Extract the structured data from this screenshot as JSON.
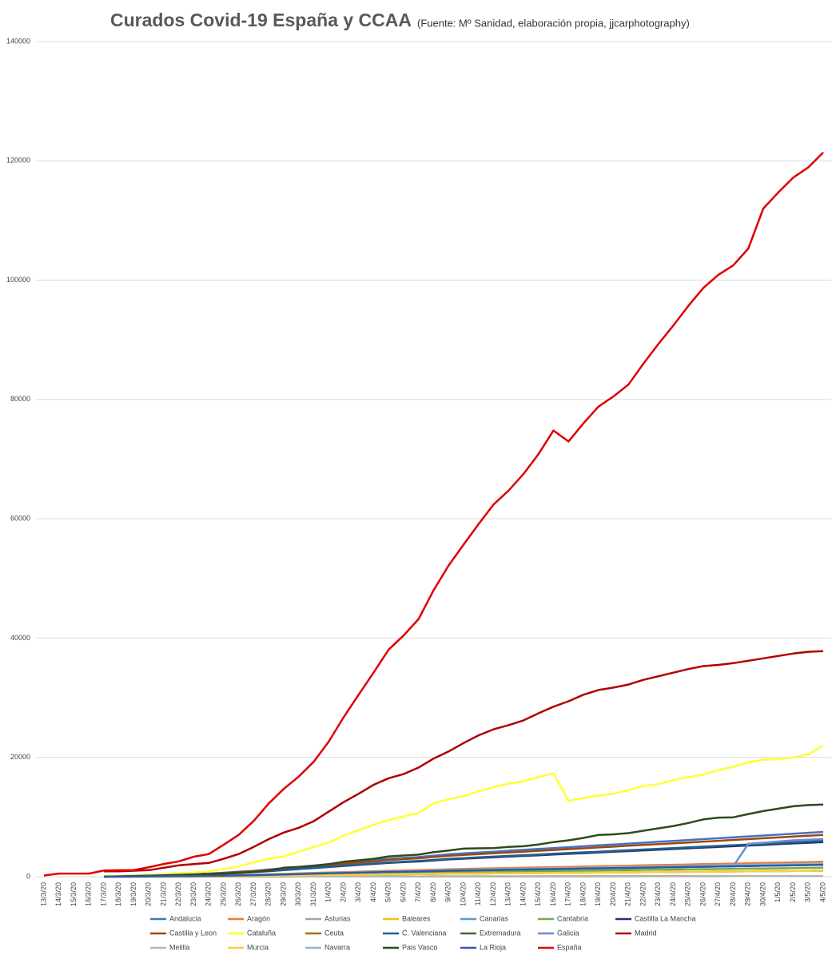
{
  "chart_data": {
    "type": "line",
    "title": "Curados Covid-19 España y CCAA",
    "subtitle": "(Fuente: Mº Sanidad, elaboración propia, jjcarphotography)",
    "categories": [
      "13/3/20",
      "14/3/20",
      "15/3/20",
      "16/3/20",
      "17/3/20",
      "18/3/20",
      "19/3/20",
      "20/3/20",
      "21/3/20",
      "22/3/20",
      "23/3/20",
      "24/3/20",
      "25/3/20",
      "26/3/20",
      "27/3/20",
      "28/3/20",
      "29/3/20",
      "30/3/20",
      "31/3/20",
      "1/4/20",
      "2/4/20",
      "3/4/20",
      "4/4/20",
      "5/4/20",
      "6/4/20",
      "7/4/20",
      "8/4/20",
      "9/4/20",
      "10/4/20",
      "11/4/20",
      "12/4/20",
      "13/4/20",
      "14/4/20",
      "15/4/20",
      "16/4/20",
      "17/4/20",
      "18/4/20",
      "19/4/20",
      "20/4/20",
      "21/4/20",
      "22/4/20",
      "23/4/20",
      "24/4/20",
      "25/4/20",
      "26/4/20",
      "27/4/20",
      "28/4/20",
      "29/4/20",
      "30/4/20",
      "1/5/20",
      "2/5/20",
      "3/5/20",
      "4/5/20"
    ],
    "ylim": [
      0,
      140000
    ],
    "yticks": [
      0,
      20000,
      40000,
      60000,
      80000,
      100000,
      120000,
      140000
    ],
    "grid": true,
    "series": [
      {
        "name": "Andalucia",
        "color": "#4472c4",
        "values": [
          null,
          null,
          null,
          null,
          0,
          75,
          150,
          225,
          300,
          375,
          450,
          525,
          675,
          825,
          975,
          1200,
          1425,
          1650,
          1875,
          2100,
          2325,
          2550,
          2775,
          3000,
          3150,
          3300,
          3525,
          3750,
          3900,
          4050,
          4200,
          4350,
          4500,
          4650,
          4800,
          4950,
          5100,
          5250,
          5400,
          5550,
          5700,
          5850,
          6000,
          6150,
          6300,
          6450,
          6600,
          6750,
          6900,
          7050,
          7200,
          7350,
          7500
        ]
      },
      {
        "name": "Aragón",
        "color": "#ed7d31",
        "values": [
          null,
          null,
          null,
          null,
          0,
          25,
          50,
          75,
          100,
          125,
          150,
          175,
          225,
          275,
          325,
          400,
          475,
          550,
          625,
          700,
          775,
          850,
          925,
          1000,
          1050,
          1100,
          1175,
          1250,
          1300,
          1350,
          1400,
          1450,
          1500,
          1550,
          1600,
          1650,
          1700,
          1750,
          1800,
          1850,
          1900,
          1950,
          2000,
          2050,
          2100,
          2150,
          2200,
          2250,
          2300,
          2350,
          2400,
          2450,
          2500
        ]
      },
      {
        "name": "Asturias",
        "color": "#a5a5a5",
        "values": [
          null,
          null,
          null,
          null,
          0,
          10,
          20,
          30,
          40,
          50,
          60,
          70,
          90,
          110,
          130,
          160,
          190,
          220,
          250,
          280,
          310,
          340,
          370,
          400,
          420,
          440,
          470,
          500,
          520,
          540,
          560,
          580,
          600,
          620,
          640,
          660,
          680,
          700,
          720,
          740,
          760,
          780,
          800,
          820,
          840,
          860,
          880,
          900,
          920,
          940,
          960,
          980,
          1000
        ]
      },
      {
        "name": "Baleares",
        "color": "#ffc000",
        "values": [
          null,
          null,
          null,
          null,
          0,
          10,
          20,
          30,
          40,
          50,
          60,
          70,
          90,
          110,
          130,
          160,
          190,
          220,
          250,
          280,
          310,
          340,
          370,
          400,
          420,
          440,
          470,
          500,
          520,
          540,
          560,
          580,
          600,
          620,
          640,
          660,
          680,
          700,
          720,
          740,
          760,
          780,
          800,
          820,
          840,
          860,
          880,
          900,
          920,
          940,
          960,
          980,
          1000
        ]
      },
      {
        "name": "Canarias",
        "color": "#5b9bd5",
        "values": [
          null,
          null,
          null,
          null,
          0,
          10,
          20,
          30,
          40,
          50,
          60,
          70,
          90,
          110,
          130,
          160,
          190,
          220,
          250,
          280,
          310,
          340,
          370,
          400,
          420,
          440,
          470,
          500,
          520,
          540,
          560,
          580,
          600,
          620,
          640,
          660,
          680,
          700,
          720,
          740,
          760,
          780,
          800,
          820,
          840,
          860,
          880,
          900,
          920,
          940,
          960,
          980,
          1000
        ]
      },
      {
        "name": "Cantabria",
        "color": "#70ad47",
        "values": [
          null,
          null,
          null,
          null,
          0,
          15,
          30,
          45,
          60,
          75,
          90,
          105,
          135,
          165,
          195,
          240,
          285,
          330,
          375,
          420,
          465,
          510,
          555,
          600,
          630,
          660,
          705,
          750,
          780,
          810,
          840,
          870,
          900,
          930,
          960,
          990,
          1020,
          1050,
          1080,
          1110,
          1140,
          1170,
          1200,
          1230,
          1260,
          1290,
          1320,
          1350,
          1380,
          1410,
          1440,
          1470,
          1500
        ]
      },
      {
        "name": "Castilla La Mancha",
        "color": "#1f3864",
        "values": [
          null,
          null,
          null,
          null,
          0,
          58,
          116,
          174,
          232,
          290,
          348,
          406,
          522,
          638,
          754,
          928,
          1102,
          1276,
          1450,
          1624,
          1798,
          1972,
          2146,
          2320,
          2436,
          2552,
          2726,
          2900,
          3016,
          3132,
          3248,
          3364,
          3480,
          3596,
          3712,
          3828,
          3944,
          4060,
          4176,
          4292,
          4408,
          4524,
          4640,
          4756,
          4872,
          4988,
          5104,
          5220,
          5336,
          5452,
          5568,
          5684,
          5800
        ]
      },
      {
        "name": "Castilla y Leon",
        "color": "#9e480e",
        "values": [
          null,
          null,
          null,
          null,
          0,
          70,
          140,
          210,
          280,
          350,
          420,
          490,
          630,
          770,
          910,
          1120,
          1330,
          1540,
          1750,
          1960,
          2170,
          2380,
          2590,
          2800,
          2940,
          3080,
          3290,
          3500,
          3640,
          3780,
          3920,
          4060,
          4200,
          4340,
          4480,
          4620,
          4760,
          4900,
          5040,
          5180,
          5320,
          5460,
          5600,
          5740,
          5880,
          6020,
          6160,
          6300,
          6440,
          6580,
          6720,
          6860,
          7000
        ]
      },
      {
        "name": "Cataluña",
        "color": "#ffff33",
        "values": [
          null,
          null,
          null,
          null,
          100,
          100,
          200,
          300,
          400,
          600,
          700,
          900,
          1300,
          1700,
          2400,
          3000,
          3400,
          4200,
          5000,
          5700,
          6900,
          7800,
          8700,
          9500,
          10100,
          10700,
          12300,
          13000,
          13500,
          14300,
          15000,
          15600,
          16000,
          16700,
          17300,
          12700,
          13200,
          13600,
          13900,
          14500,
          15200,
          15500,
          16200,
          16700,
          17100,
          17900,
          18400,
          19200,
          19600,
          19700,
          20000,
          20500,
          22000
        ]
      },
      {
        "name": "Ceuta",
        "color": "#997300",
        "values": [
          null,
          null,
          null,
          null,
          0,
          1,
          2,
          3,
          4,
          5,
          6,
          7,
          9,
          11,
          13,
          16,
          19,
          22,
          25,
          28,
          31,
          34,
          37,
          40,
          42,
          44,
          47,
          50,
          52,
          54,
          56,
          58,
          60,
          62,
          64,
          66,
          68,
          70,
          72,
          74,
          76,
          78,
          80,
          82,
          84,
          86,
          88,
          90,
          92,
          94,
          96,
          98,
          100
        ]
      },
      {
        "name": "C. Valenciana",
        "color": "#255e91",
        "values": [
          null,
          null,
          null,
          null,
          0,
          60,
          120,
          180,
          240,
          300,
          360,
          420,
          540,
          660,
          780,
          960,
          1140,
          1320,
          1500,
          1680,
          1860,
          2040,
          2220,
          2400,
          2520,
          2640,
          2820,
          3000,
          3120,
          3240,
          3360,
          3480,
          3600,
          3720,
          3840,
          3960,
          4080,
          4200,
          4320,
          4440,
          4560,
          4680,
          4800,
          4920,
          5040,
          5160,
          5280,
          5400,
          5520,
          5640,
          5760,
          5880,
          6000
        ]
      },
      {
        "name": "Extremadura",
        "color": "#43682b",
        "values": [
          null,
          null,
          null,
          null,
          0,
          20,
          40,
          60,
          80,
          100,
          120,
          140,
          180,
          220,
          260,
          320,
          380,
          440,
          500,
          560,
          620,
          680,
          740,
          800,
          840,
          880,
          940,
          1000,
          1040,
          1080,
          1120,
          1160,
          1200,
          1240,
          1280,
          1320,
          1360,
          1400,
          1440,
          1480,
          1520,
          1560,
          1600,
          1640,
          1680,
          1720,
          1760,
          1800,
          1840,
          1880,
          1920,
          1960,
          2000
        ]
      },
      {
        "name": "Galicia",
        "color": "#698ed0",
        "values": [
          null,
          null,
          null,
          null,
          0,
          20,
          40,
          60,
          80,
          100,
          120,
          140,
          180,
          220,
          260,
          320,
          380,
          440,
          500,
          560,
          620,
          680,
          740,
          800,
          840,
          880,
          940,
          1000,
          1040,
          1080,
          1120,
          1160,
          1200,
          1240,
          1280,
          1320,
          1360,
          1400,
          1440,
          1480,
          1520,
          1560,
          1600,
          1640,
          1680,
          1720,
          1760,
          5500,
          5700,
          5900,
          6100,
          6200,
          6300
        ]
      },
      {
        "name": "Madrid",
        "color": "#b00000",
        "values": [
          null,
          null,
          null,
          null,
          900,
          900,
          1000,
          1100,
          1500,
          1900,
          2100,
          2300,
          3000,
          3800,
          5000,
          6300,
          7400,
          8200,
          9300,
          10900,
          12500,
          13900,
          15400,
          16500,
          17200,
          18300,
          19800,
          21000,
          22400,
          23700,
          24700,
          25400,
          26200,
          27400,
          28500,
          29400,
          30500,
          31300,
          31700,
          32200,
          33000,
          33600,
          34200,
          34800,
          35300,
          35500,
          35800,
          36200,
          36600,
          37000,
          37400,
          37700,
          37800
        ]
      },
      {
        "name": "Melilla",
        "color": "#b7b7b7",
        "values": [
          null,
          null,
          null,
          null,
          0,
          1,
          2,
          3,
          4,
          5,
          6,
          7,
          9,
          11,
          13,
          16,
          19,
          22,
          25,
          28,
          31,
          34,
          37,
          40,
          42,
          44,
          47,
          50,
          52,
          54,
          56,
          58,
          60,
          62,
          64,
          66,
          68,
          70,
          72,
          74,
          76,
          78,
          80,
          82,
          84,
          86,
          88,
          90,
          92,
          94,
          96,
          98,
          100
        ]
      },
      {
        "name": "Murcia",
        "color": "#ffcd33",
        "values": [
          null,
          null,
          null,
          null,
          0,
          10,
          20,
          30,
          40,
          50,
          60,
          70,
          90,
          110,
          130,
          160,
          190,
          220,
          250,
          280,
          310,
          340,
          370,
          400,
          420,
          440,
          470,
          500,
          520,
          540,
          560,
          580,
          600,
          620,
          640,
          660,
          680,
          700,
          720,
          740,
          760,
          780,
          800,
          820,
          840,
          860,
          880,
          900,
          920,
          940,
          960,
          980,
          1000
        ]
      },
      {
        "name": "Navarra",
        "color": "#8cb4e0",
        "values": [
          null,
          null,
          null,
          null,
          0,
          22,
          44,
          66,
          88,
          110,
          132,
          154,
          198,
          242,
          286,
          352,
          418,
          484,
          550,
          616,
          682,
          748,
          814,
          880,
          924,
          968,
          1034,
          1100,
          1144,
          1188,
          1232,
          1276,
          1320,
          1364,
          1408,
          1452,
          1496,
          1540,
          1584,
          1628,
          1672,
          1716,
          1760,
          1804,
          1848,
          1892,
          1936,
          1980,
          2024,
          2068,
          2112,
          2156,
          2200
        ]
      },
      {
        "name": "Pais Vasco",
        "color": "#2f4a1b",
        "values": [
          null,
          null,
          null,
          null,
          0,
          50,
          100,
          150,
          200,
          300,
          350,
          400,
          500,
          650,
          800,
          1000,
          1500,
          1650,
          1800,
          2100,
          2500,
          2750,
          3000,
          3400,
          3550,
          3700,
          4100,
          4400,
          4700,
          4750,
          4800,
          5000,
          5100,
          5400,
          5800,
          6100,
          6500,
          7000,
          7100,
          7300,
          7700,
          8100,
          8500,
          9000,
          9600,
          9900,
          9950,
          10500,
          11000,
          11400,
          11800,
          12000,
          12100
        ]
      },
      {
        "name": "La Rioja",
        "color": "#2e5aa8",
        "values": [
          null,
          null,
          null,
          null,
          0,
          20,
          40,
          60,
          80,
          100,
          120,
          140,
          180,
          220,
          260,
          320,
          380,
          440,
          500,
          560,
          620,
          680,
          740,
          800,
          840,
          880,
          940,
          1000,
          1040,
          1080,
          1120,
          1160,
          1200,
          1240,
          1280,
          1320,
          1360,
          1400,
          1440,
          1480,
          1520,
          1560,
          1600,
          1640,
          1680,
          1720,
          1760,
          1800,
          1840,
          1880,
          1920,
          1960,
          2000
        ]
      },
      {
        "name": "España",
        "color": "#e00000",
        "values": [
          200,
          517,
          517,
          517,
          1028,
          1081,
          1107,
          1588,
          2125,
          2575,
          3355,
          3794,
          5367,
          7015,
          9357,
          12285,
          14709,
          16780,
          19259,
          22647,
          26743,
          30513,
          34219,
          38080,
          40437,
          43208,
          48021,
          52165,
          55668,
          59109,
          62391,
          64727,
          67504,
          70853,
          74797,
          72963,
          76000,
          78800,
          80500,
          82500,
          86000,
          89300,
          92400,
          95700,
          98700,
          100900,
          102500,
          105300,
          112000,
          114700,
          117200,
          118900,
          121400
        ]
      }
    ]
  }
}
